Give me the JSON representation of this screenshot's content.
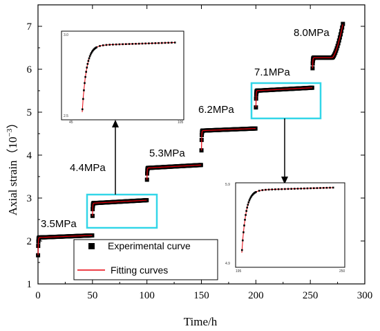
{
  "chart_data": {
    "type": "scatter",
    "xlabel": "Time/h",
    "ylabel_main": "Axial strain（",
    "ylabel_unit": "10",
    "ylabel_exp": "−3",
    "ylabel_close": "）",
    "xlim": [
      0,
      300
    ],
    "ylim": [
      1,
      7.5
    ],
    "xticks": [
      0,
      50,
      100,
      150,
      200,
      250,
      300
    ],
    "yticks": [
      1,
      2,
      3,
      4,
      5,
      6,
      7
    ],
    "grid": false,
    "legend_position": "bottom-center",
    "series": [
      {
        "name": "Experimental curve",
        "marker": "square",
        "color": "#000000"
      },
      {
        "name": "Fitting curves",
        "marker": "line",
        "color": "#e8000b"
      }
    ],
    "stages": [
      {
        "label": "3.5MPa",
        "start": 0,
        "end": 50,
        "y0": 1.55,
        "y_plateau": 2.08,
        "y_end": 2.13
      },
      {
        "label": "4.4MPa",
        "start": 50,
        "end": 100,
        "y0": 2.5,
        "y_plateau": 2.88,
        "y_end": 2.95
      },
      {
        "label": "5.3MPa",
        "start": 100,
        "end": 150,
        "y0": 3.35,
        "y_plateau": 3.7,
        "y_end": 3.77
      },
      {
        "label": "6.2MPa",
        "start": 150,
        "end": 200,
        "y0": 3.98,
        "y_plateau": 4.57,
        "y_end": 4.62
      },
      {
        "label": "7.1MPa",
        "start": 200,
        "end": 252,
        "y0": 5.0,
        "y_plateau": 5.5,
        "y_end": 5.57
      },
      {
        "label": "8.0MPa",
        "start": 252,
        "end": 280,
        "y0": 5.97,
        "y_plateau": 6.27,
        "y_end": 7.1
      }
    ],
    "insets": [
      {
        "id": "inset-top",
        "yticks": [
          "3.0",
          "2.5"
        ],
        "xticks": [
          "45",
          "105"
        ]
      },
      {
        "id": "inset-bottom",
        "yticks": [
          "5.9",
          "4.9"
        ],
        "xticks": [
          "195",
          "250"
        ]
      }
    ],
    "colors": {
      "highlight_box": "#33d6e8",
      "fit_line": "#e8000b",
      "marker": "#000000"
    }
  }
}
